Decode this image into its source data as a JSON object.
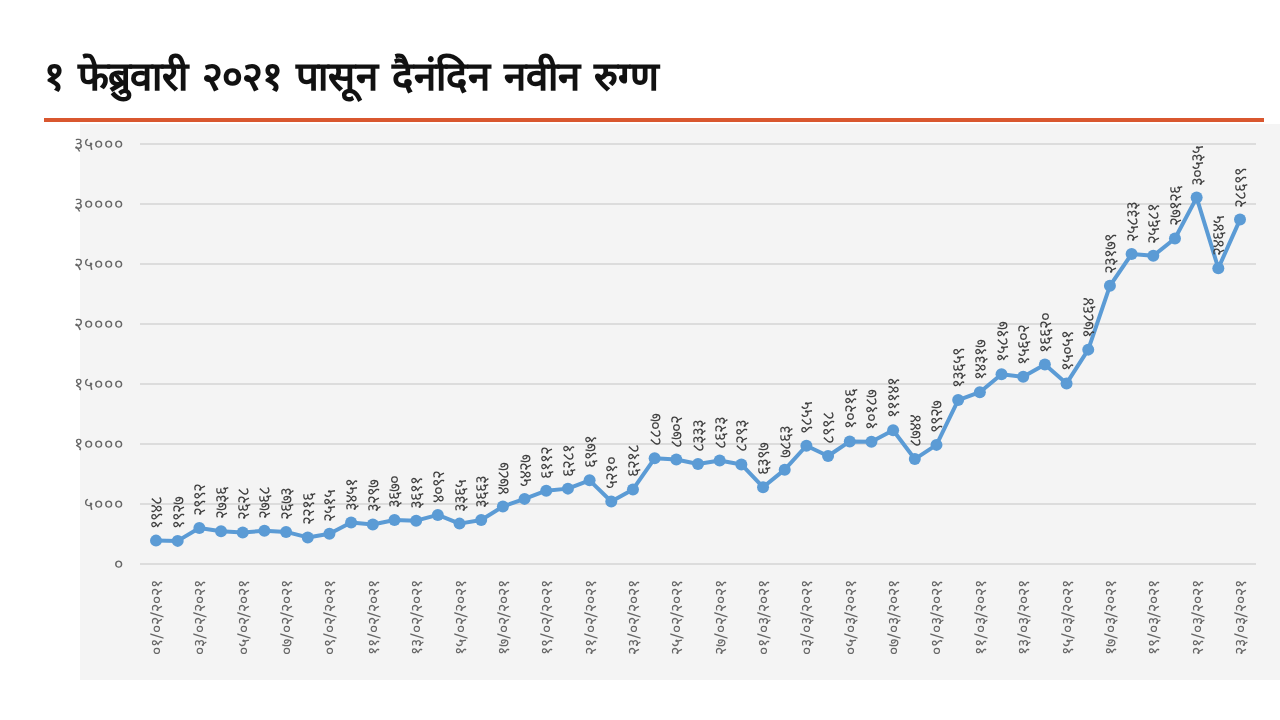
{
  "chart_data": {
    "type": "line",
    "title": "१ फेब्रुवारी २०२१ पासून दैनंदिन नवीन रुग्ण",
    "categories": [
      "०१/०२/२०२१",
      null,
      "०३/०२/२०२१",
      null,
      "०५/०२/२०२१",
      null,
      "०७/०२/२०२१",
      null,
      "०९/०२/२०२१",
      null,
      "११/०२/२०२१",
      null,
      "१३/०२/२०२१",
      null,
      "१५/०२/२०२१",
      null,
      "१७/०२/२०२१",
      null,
      "१९/०२/२०२१",
      null,
      "२१/०२/२०२१",
      null,
      "२३/०२/२०२१",
      null,
      "२५/०२/२०२१",
      null,
      "२७/०२/२०२१",
      null,
      "०१/०३/२०२१",
      null,
      "०३/०३/२०२१",
      null,
      "०५/०३/२०२१",
      null,
      "०७/०३/२०२१",
      null,
      "०९/०३/२०२१",
      null,
      "११/०३/२०२१",
      null,
      "१३/०३/२०२१",
      null,
      "१५/०३/२०२१",
      null,
      "१७/०३/२०२१",
      null,
      "१९/०३/२०२१",
      null,
      "२१/०३/२०२१",
      null,
      "२३/०३/२०२१"
    ],
    "series": [
      {
        "color": "#5b9bd5",
        "values": [
          1948,
          1927,
          2992,
          2736,
          2628,
          2768,
          2673,
          2216,
          2515,
          3451,
          3297,
          3670,
          3611,
          4092,
          3365,
          3663,
          4787,
          5427,
          6112,
          6281,
          6971,
          5210,
          6218,
          8807,
          8702,
          8333,
          8623,
          8293,
          6397,
          7863,
          9855,
          8998,
          10216,
          10187,
          11141,
          8744,
          9927,
          13659,
          14317,
          15817,
          15602,
          16620,
          15051,
          17864,
          23179,
          25833,
          25681,
          27126,
          30535,
          24645,
          28699
        ],
        "value_labels": [
          "१९४८",
          "१९२७",
          "२९९२",
          "२७३६",
          "२६२८",
          "२७६८",
          "२६७३",
          "२२१६",
          "२५१५",
          "३४५१",
          "३२९७",
          "३६७०",
          "३६११",
          "४०९२",
          "३३६५",
          "३६६३",
          "४७८७",
          "५४२७",
          "६११२",
          "६२८१",
          "६९७१",
          "५२१०",
          "६२१८",
          "८८०७",
          "८७०२",
          "८३३३",
          "८६२३",
          "८२९३",
          "६३९७",
          "७८६३",
          "९८५५",
          "८९९८",
          "१०२१६",
          "१०१८७",
          "१११४१",
          "८७४४",
          "९९२७",
          "१३६५९",
          "१४३१७",
          "१५८१७",
          "१५६०२",
          "१६६२०",
          "१५०५१",
          "१७८६४",
          "२३१७९",
          "२५८३३",
          "२५६८१",
          "२७१२६",
          "३०५३५",
          "२४६४५",
          "२८६९९"
        ]
      }
    ],
    "ylim": [
      0,
      35000
    ],
    "yticks": [
      {
        "value": 0,
        "label": "०"
      },
      {
        "value": 5000,
        "label": "५०००"
      },
      {
        "value": 10000,
        "label": "१००००"
      },
      {
        "value": 15000,
        "label": "१५०००"
      },
      {
        "value": 20000,
        "label": "२००००"
      },
      {
        "value": 25000,
        "label": "२५०००"
      },
      {
        "value": 30000,
        "label": "३००००"
      },
      {
        "value": 35000,
        "label": "३५०००"
      }
    ],
    "grid": "y",
    "marker": "circle",
    "line_style": "solid"
  }
}
